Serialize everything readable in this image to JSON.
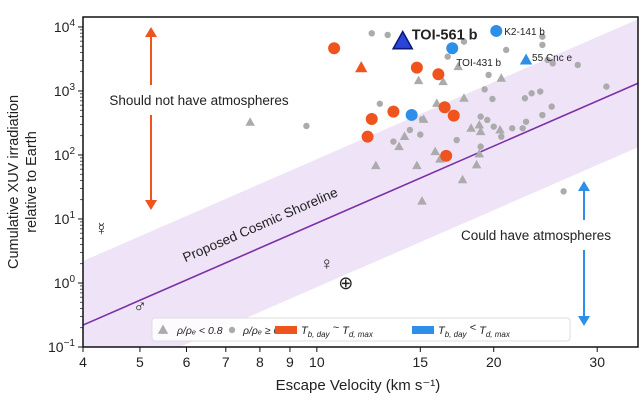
{
  "chart_data": {
    "type": "scatter",
    "xlabel": "Escape Velocity (km s⁻¹)",
    "ylabel_lines": [
      "Cumulative XUV irradiation",
      "relative to Earth"
    ],
    "x_scale": "log",
    "y_scale": "log",
    "xlim": [
      4,
      35.2
    ],
    "ylim": [
      0.1,
      14300
    ],
    "x_ticks": [
      4,
      5,
      6,
      7,
      8,
      9,
      10,
      15,
      20,
      30
    ],
    "x_tick_labels": [
      "4",
      "5",
      "6",
      "7",
      "8",
      "9",
      "10",
      "15",
      "20",
      "30"
    ],
    "y_ticks": [
      0.1,
      1,
      10,
      100,
      1000,
      10000
    ],
    "y_tick_labels": [
      {
        "base": "10",
        "exp": "−1"
      },
      {
        "base": "10",
        "exp": "0"
      },
      {
        "base": "10",
        "exp": "1"
      },
      {
        "base": "10",
        "exp": "2"
      },
      {
        "base": "10",
        "exp": "3"
      },
      {
        "base": "10",
        "exp": "4"
      }
    ],
    "grid": false,
    "colors": {
      "gray": "#ababab",
      "orange": "#f0541e",
      "blue": "#2e8fe8",
      "highlight": "#2a45d8",
      "shoreline": "#7b2fa8",
      "band": "#efe3f7"
    },
    "shoreline": {
      "label": "Proposed Cosmic Shoreline",
      "relation": "I = 8.6e-4 * v^4",
      "coefficient": 0.00086,
      "exponent": 4,
      "band_decades": 1
    },
    "series": [
      {
        "key": "gray_tri",
        "marker": "triangle",
        "color": "gray",
        "points": [
          [
            7.7,
            324
          ],
          [
            14.9,
            1450
          ],
          [
            16.4,
            1400
          ],
          [
            17.4,
            2400
          ],
          [
            20.6,
            1580
          ],
          [
            17.8,
            770
          ],
          [
            16.0,
            640
          ],
          [
            15.2,
            360
          ],
          [
            18.3,
            261
          ],
          [
            18.9,
            294
          ],
          [
            19.0,
            232
          ],
          [
            20.5,
            246
          ],
          [
            14.1,
            194
          ],
          [
            13.8,
            135
          ],
          [
            15.9,
            113
          ],
          [
            18.9,
            104
          ],
          [
            16.2,
            86
          ],
          [
            12.6,
            68
          ],
          [
            14.8,
            68
          ],
          [
            18.7,
            70
          ],
          [
            17.7,
            41
          ],
          [
            15.1,
            19
          ]
        ]
      },
      {
        "key": "gray_circ",
        "marker": "circle",
        "color": "gray",
        "points": [
          [
            12.4,
            7950
          ],
          [
            13.2,
            7500
          ],
          [
            17.8,
            5900
          ],
          [
            16.7,
            3440
          ],
          [
            21.0,
            4380
          ],
          [
            24.2,
            7060
          ],
          [
            24.2,
            5240
          ],
          [
            24.7,
            3050
          ],
          [
            25.2,
            2700
          ],
          [
            27.8,
            2550
          ],
          [
            19.6,
            1780
          ],
          [
            19.3,
            1060
          ],
          [
            19.9,
            750
          ],
          [
            22.6,
            770
          ],
          [
            23.2,
            920
          ],
          [
            24.0,
            980
          ],
          [
            25.1,
            570
          ],
          [
            24.2,
            420
          ],
          [
            22.7,
            330
          ],
          [
            31.1,
            1170
          ],
          [
            12.8,
            630
          ],
          [
            9.6,
            284
          ],
          [
            15.1,
            360
          ],
          [
            14.4,
            246
          ],
          [
            15.0,
            208
          ],
          [
            13.5,
            162
          ],
          [
            19.0,
            397
          ],
          [
            19.5,
            352
          ],
          [
            20.0,
            277
          ],
          [
            21.5,
            261
          ],
          [
            22.4,
            261
          ],
          [
            20.6,
            193
          ],
          [
            17.3,
            171
          ],
          [
            19.0,
            135
          ],
          [
            26.3,
            27
          ]
        ]
      },
      {
        "key": "orange_circ",
        "marker": "circle",
        "color": "orange",
        "points": [
          [
            10.7,
            4650
          ],
          [
            14.8,
            2310
          ],
          [
            16.1,
            1820
          ],
          [
            13.5,
            475
          ],
          [
            12.4,
            365
          ],
          [
            16.5,
            556
          ],
          [
            17.1,
            411
          ],
          [
            12.2,
            193
          ],
          [
            16.6,
            97
          ]
        ]
      },
      {
        "key": "orange_tri",
        "marker": "triangle",
        "color": "orange",
        "points": [
          [
            11.9,
            2310
          ]
        ]
      },
      {
        "key": "blue_circ",
        "marker": "circle",
        "color": "blue",
        "points": [
          [
            17.0,
            4650
          ],
          [
            20.2,
            8660
          ],
          [
            14.5,
            422
          ]
        ]
      },
      {
        "key": "blue_tri",
        "marker": "triangle",
        "color": "blue",
        "points": [
          [
            22.7,
            3050
          ]
        ]
      },
      {
        "key": "highlight_tri",
        "marker": "big-triangle",
        "color": "highlight",
        "points": [
          [
            14.0,
            5890
          ]
        ]
      }
    ],
    "planet_labels": [
      {
        "text": "TOI-561 b",
        "x": 14.0,
        "y": 5890,
        "bold": true
      },
      {
        "text": "K2-141 b",
        "x": 20.2,
        "y": 8660,
        "bold": false
      },
      {
        "text": "TOI-431 b",
        "x": 17.0,
        "y": 4650,
        "bold": false
      },
      {
        "text": "55 Cnc e",
        "x": 22.7,
        "y": 3050,
        "bold": false
      }
    ],
    "solar_system": [
      {
        "name": "Mercury",
        "symbol": "☿",
        "x": 4.3,
        "y": 7.0
      },
      {
        "name": "Venus",
        "symbol": "♀",
        "x": 10.4,
        "y": 2.0
      },
      {
        "name": "Earth",
        "symbol": "⊕",
        "x": 11.2,
        "y": 1.0
      },
      {
        "name": "Mars",
        "symbol": "♂",
        "x": 5.0,
        "y": 0.43
      }
    ],
    "annotations": {
      "above": "Should not have atmospheres",
      "below": "Could have atmospheres"
    },
    "legend": {
      "placement": "bottom-center",
      "items": [
        {
          "marker": "triangle",
          "color": "gray",
          "label": "ρ/ρₑ < 0.8"
        },
        {
          "marker": "circle",
          "color": "gray",
          "label": "ρ/ρₑ ≥ 0.8"
        },
        {
          "marker": "rect",
          "color": "orange",
          "sym": "T",
          "sub1": "b, day",
          "op": " ~ ",
          "sym2": "T",
          "sub2": "d, max"
        },
        {
          "marker": "rect",
          "color": "blue",
          "sym": "T",
          "sub1": "b, day",
          "op": " < ",
          "sym2": "T",
          "sub2": "d, max"
        }
      ]
    }
  }
}
